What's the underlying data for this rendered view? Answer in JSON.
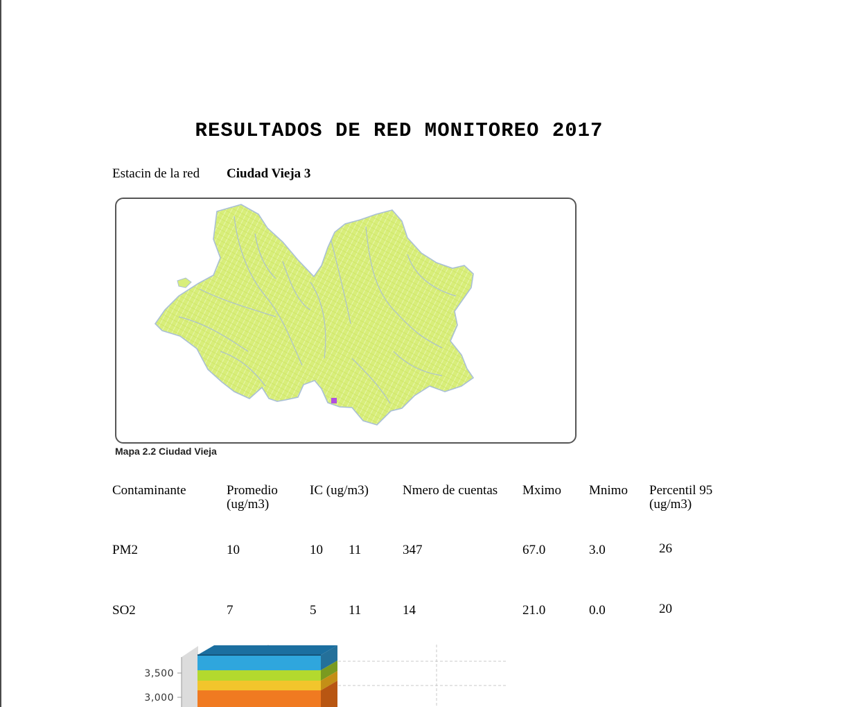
{
  "document": {
    "title": "RESULTADOS DE RED MONITOREO 2017",
    "station_label": "Estacin de la red",
    "station_name": "Ciudad Vieja 3",
    "map_caption": "Mapa 2.2 Ciudad Vieja"
  },
  "table": {
    "headers": [
      [
        "Contaminante"
      ],
      [
        "Promedio",
        "(ug/m3)"
      ],
      [
        "IC (ug/m3)"
      ],
      [
        "Nmero de cuentas"
      ],
      [
        "Mximo"
      ],
      [
        "Mnimo"
      ],
      [
        "Percentil 95",
        "(ug/m3)"
      ]
    ],
    "rows": [
      {
        "contaminante": "PM2",
        "promedio": "10",
        "ic_low": "10",
        "ic_high": "11",
        "cuentas": "347",
        "maximo": "67.0",
        "minimo": "3.0",
        "p95": "26"
      },
      {
        "contaminante": "SO2",
        "promedio": "7",
        "ic_low": "5",
        "ic_high": "11",
        "cuentas": "14",
        "maximo": "21.0",
        "minimo": "0.0",
        "p95": "20"
      }
    ]
  },
  "chart_data": {
    "type": "bar",
    "y_ticks": [
      "3,500",
      "3,000"
    ],
    "stack_colors": [
      "#1b6fa0",
      "#2fa6dd",
      "#b3d92e",
      "#f2c52c",
      "#f07a21"
    ]
  }
}
